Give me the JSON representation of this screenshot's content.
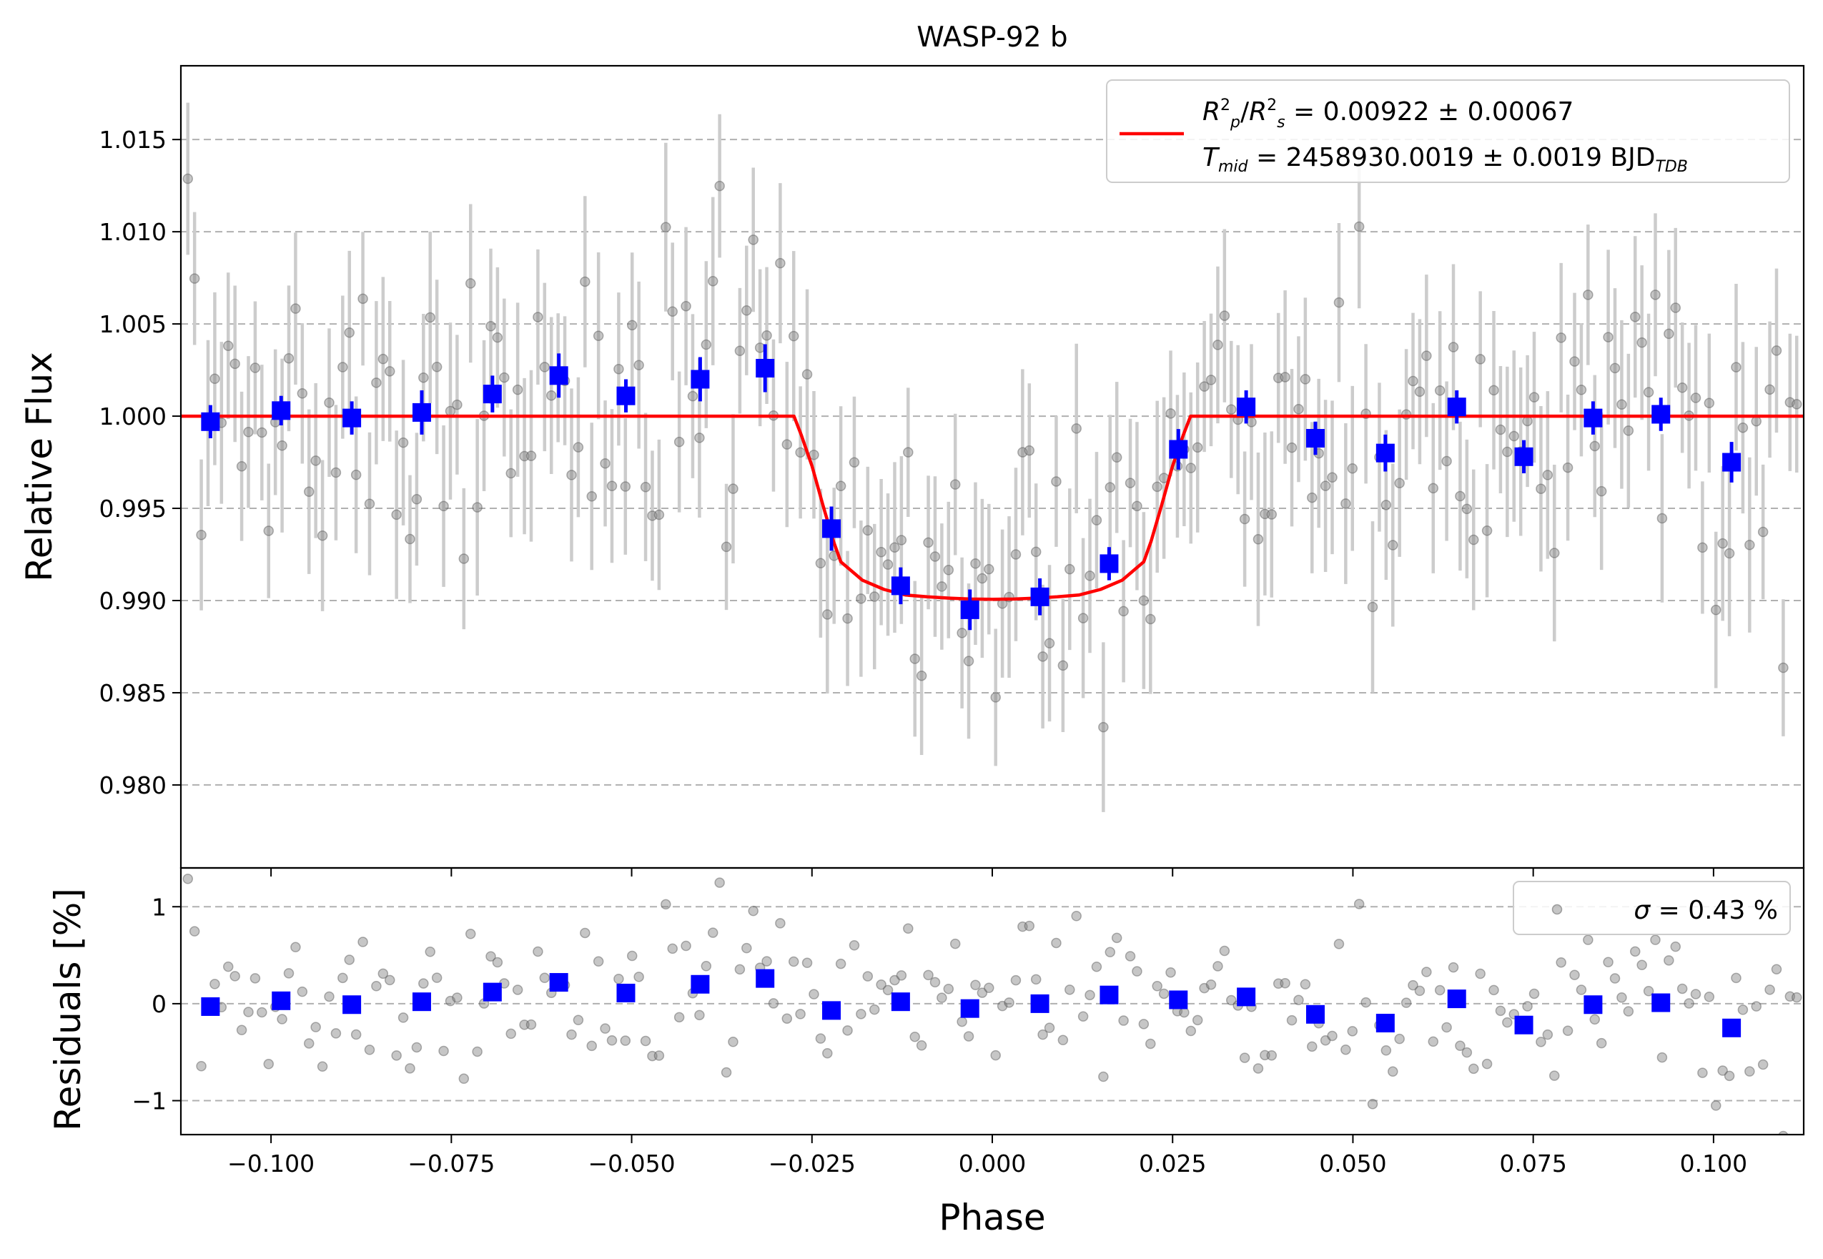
{
  "chart_data": [
    {
      "type": "scatter",
      "panel": "main",
      "title": "WASP-92 b",
      "xlabel": "",
      "ylabel": "Relative Flux",
      "xlim": [
        -0.1125,
        0.1125
      ],
      "ylim": [
        0.9755,
        1.019
      ],
      "yticks": [
        0.98,
        0.985,
        0.99,
        0.995,
        1.0,
        1.005,
        1.01,
        1.015
      ],
      "ytick_labels": [
        "0.980",
        "0.985",
        "0.990",
        "0.995",
        "1.000",
        "1.005",
        "1.010",
        "1.015"
      ],
      "grid": "horizontal dashed",
      "legend_position": "top-right",
      "legend": {
        "line1_prefix": "R",
        "line1_value": " = 0.00922 ± 0.00067",
        "line2_prefix": "T",
        "line2_sub": "mid",
        "line2_value": " = 2458930.0019 ± 0.0019 BJD",
        "line2_unit_sub": "TDB"
      },
      "series": [
        {
          "name": "transit model",
          "kind": "line",
          "color": "#ff0000",
          "x": [
            -0.113,
            -0.0275,
            -0.0265,
            -0.025,
            -0.0235,
            -0.022,
            -0.021,
            -0.018,
            -0.015,
            -0.012,
            -0.009,
            -0.006,
            -0.003,
            0.0,
            0.003,
            0.006,
            0.009,
            0.012,
            0.015,
            0.018,
            0.021,
            0.022,
            0.0235,
            0.025,
            0.0265,
            0.0275,
            0.113
          ],
          "y": [
            1.0,
            1.0,
            0.999,
            0.9973,
            0.9952,
            0.9932,
            0.9921,
            0.9911,
            0.9906,
            0.9903,
            0.9902,
            0.99013,
            0.99008,
            0.99007,
            0.99008,
            0.99013,
            0.9902,
            0.9903,
            0.9906,
            0.9911,
            0.9921,
            0.9932,
            0.9952,
            0.9973,
            0.999,
            1.0,
            1.0
          ]
        },
        {
          "name": "binned data",
          "kind": "errorbar-square",
          "color": "#0000ff",
          "x": [
            -0.1084,
            -0.0986,
            -0.0888,
            -0.0791,
            -0.0693,
            -0.0601,
            -0.0508,
            -0.0405,
            -0.0315,
            -0.0223,
            -0.0127,
            -0.0031,
            0.0066,
            0.0162,
            0.0258,
            0.0352,
            0.0448,
            0.0545,
            0.0644,
            0.0737,
            0.0833,
            0.0927,
            0.1025
          ],
          "y": [
            0.9997,
            1.0003,
            0.9999,
            1.0002,
            1.0012,
            1.0022,
            1.0011,
            1.002,
            1.0026,
            0.9939,
            0.9908,
            0.9895,
            0.9902,
            0.992,
            0.9982,
            1.0005,
            0.9988,
            0.998,
            1.0005,
            0.9978,
            0.9999,
            1.0001,
            0.9975
          ],
          "yerr": [
            0.0009,
            0.0008,
            0.0009,
            0.0012,
            0.001,
            0.0012,
            0.0009,
            0.0012,
            0.0013,
            0.0012,
            0.001,
            0.0011,
            0.001,
            0.0009,
            0.0011,
            0.0009,
            0.0009,
            0.001,
            0.0009,
            0.0009,
            0.0009,
            0.0009,
            0.0011
          ]
        }
      ],
      "raw_points": {
        "name": "unbinned data",
        "color": "#808080",
        "errorbar_color": "#cccccc",
        "count": 240,
        "x_range": [
          -0.112,
          0.112
        ],
        "scatter_sigma": 0.0043,
        "typical_yerr": 0.004
      }
    },
    {
      "type": "scatter",
      "panel": "residuals",
      "xlabel": "Phase",
      "ylabel": "Residuals [%]",
      "xlim": [
        -0.1125,
        0.1125
      ],
      "ylim": [
        -1.35,
        1.4
      ],
      "xticks": [
        -0.1,
        -0.075,
        -0.05,
        -0.025,
        0.0,
        0.025,
        0.05,
        0.075,
        0.1
      ],
      "xtick_labels": [
        "−0.100",
        "−0.075",
        "−0.050",
        "−0.025",
        "0.000",
        "0.025",
        "0.050",
        "0.075",
        "0.100"
      ],
      "yticks": [
        -1,
        0,
        1
      ],
      "ytick_labels": [
        "−1",
        "0",
        "1"
      ],
      "grid": "horizontal dashed",
      "legend_position": "top-right",
      "legend": {
        "label": " = 0.43 %",
        "symbol": "σ"
      },
      "series": [
        {
          "name": "binned residuals",
          "kind": "square",
          "color": "#0000ff",
          "x": [
            -0.1084,
            -0.0986,
            -0.0888,
            -0.0791,
            -0.0693,
            -0.0601,
            -0.0508,
            -0.0405,
            -0.0315,
            -0.0223,
            -0.0127,
            -0.0031,
            0.0066,
            0.0162,
            0.0258,
            0.0352,
            0.0448,
            0.0545,
            0.0644,
            0.0737,
            0.0833,
            0.0927,
            0.1025
          ],
          "y": [
            -0.03,
            0.03,
            -0.01,
            0.02,
            0.12,
            0.22,
            0.11,
            0.2,
            0.26,
            -0.07,
            0.02,
            -0.05,
            0.0,
            0.09,
            0.04,
            0.07,
            -0.11,
            -0.2,
            0.05,
            -0.22,
            -0.01,
            0.01,
            -0.25
          ]
        }
      ]
    }
  ]
}
